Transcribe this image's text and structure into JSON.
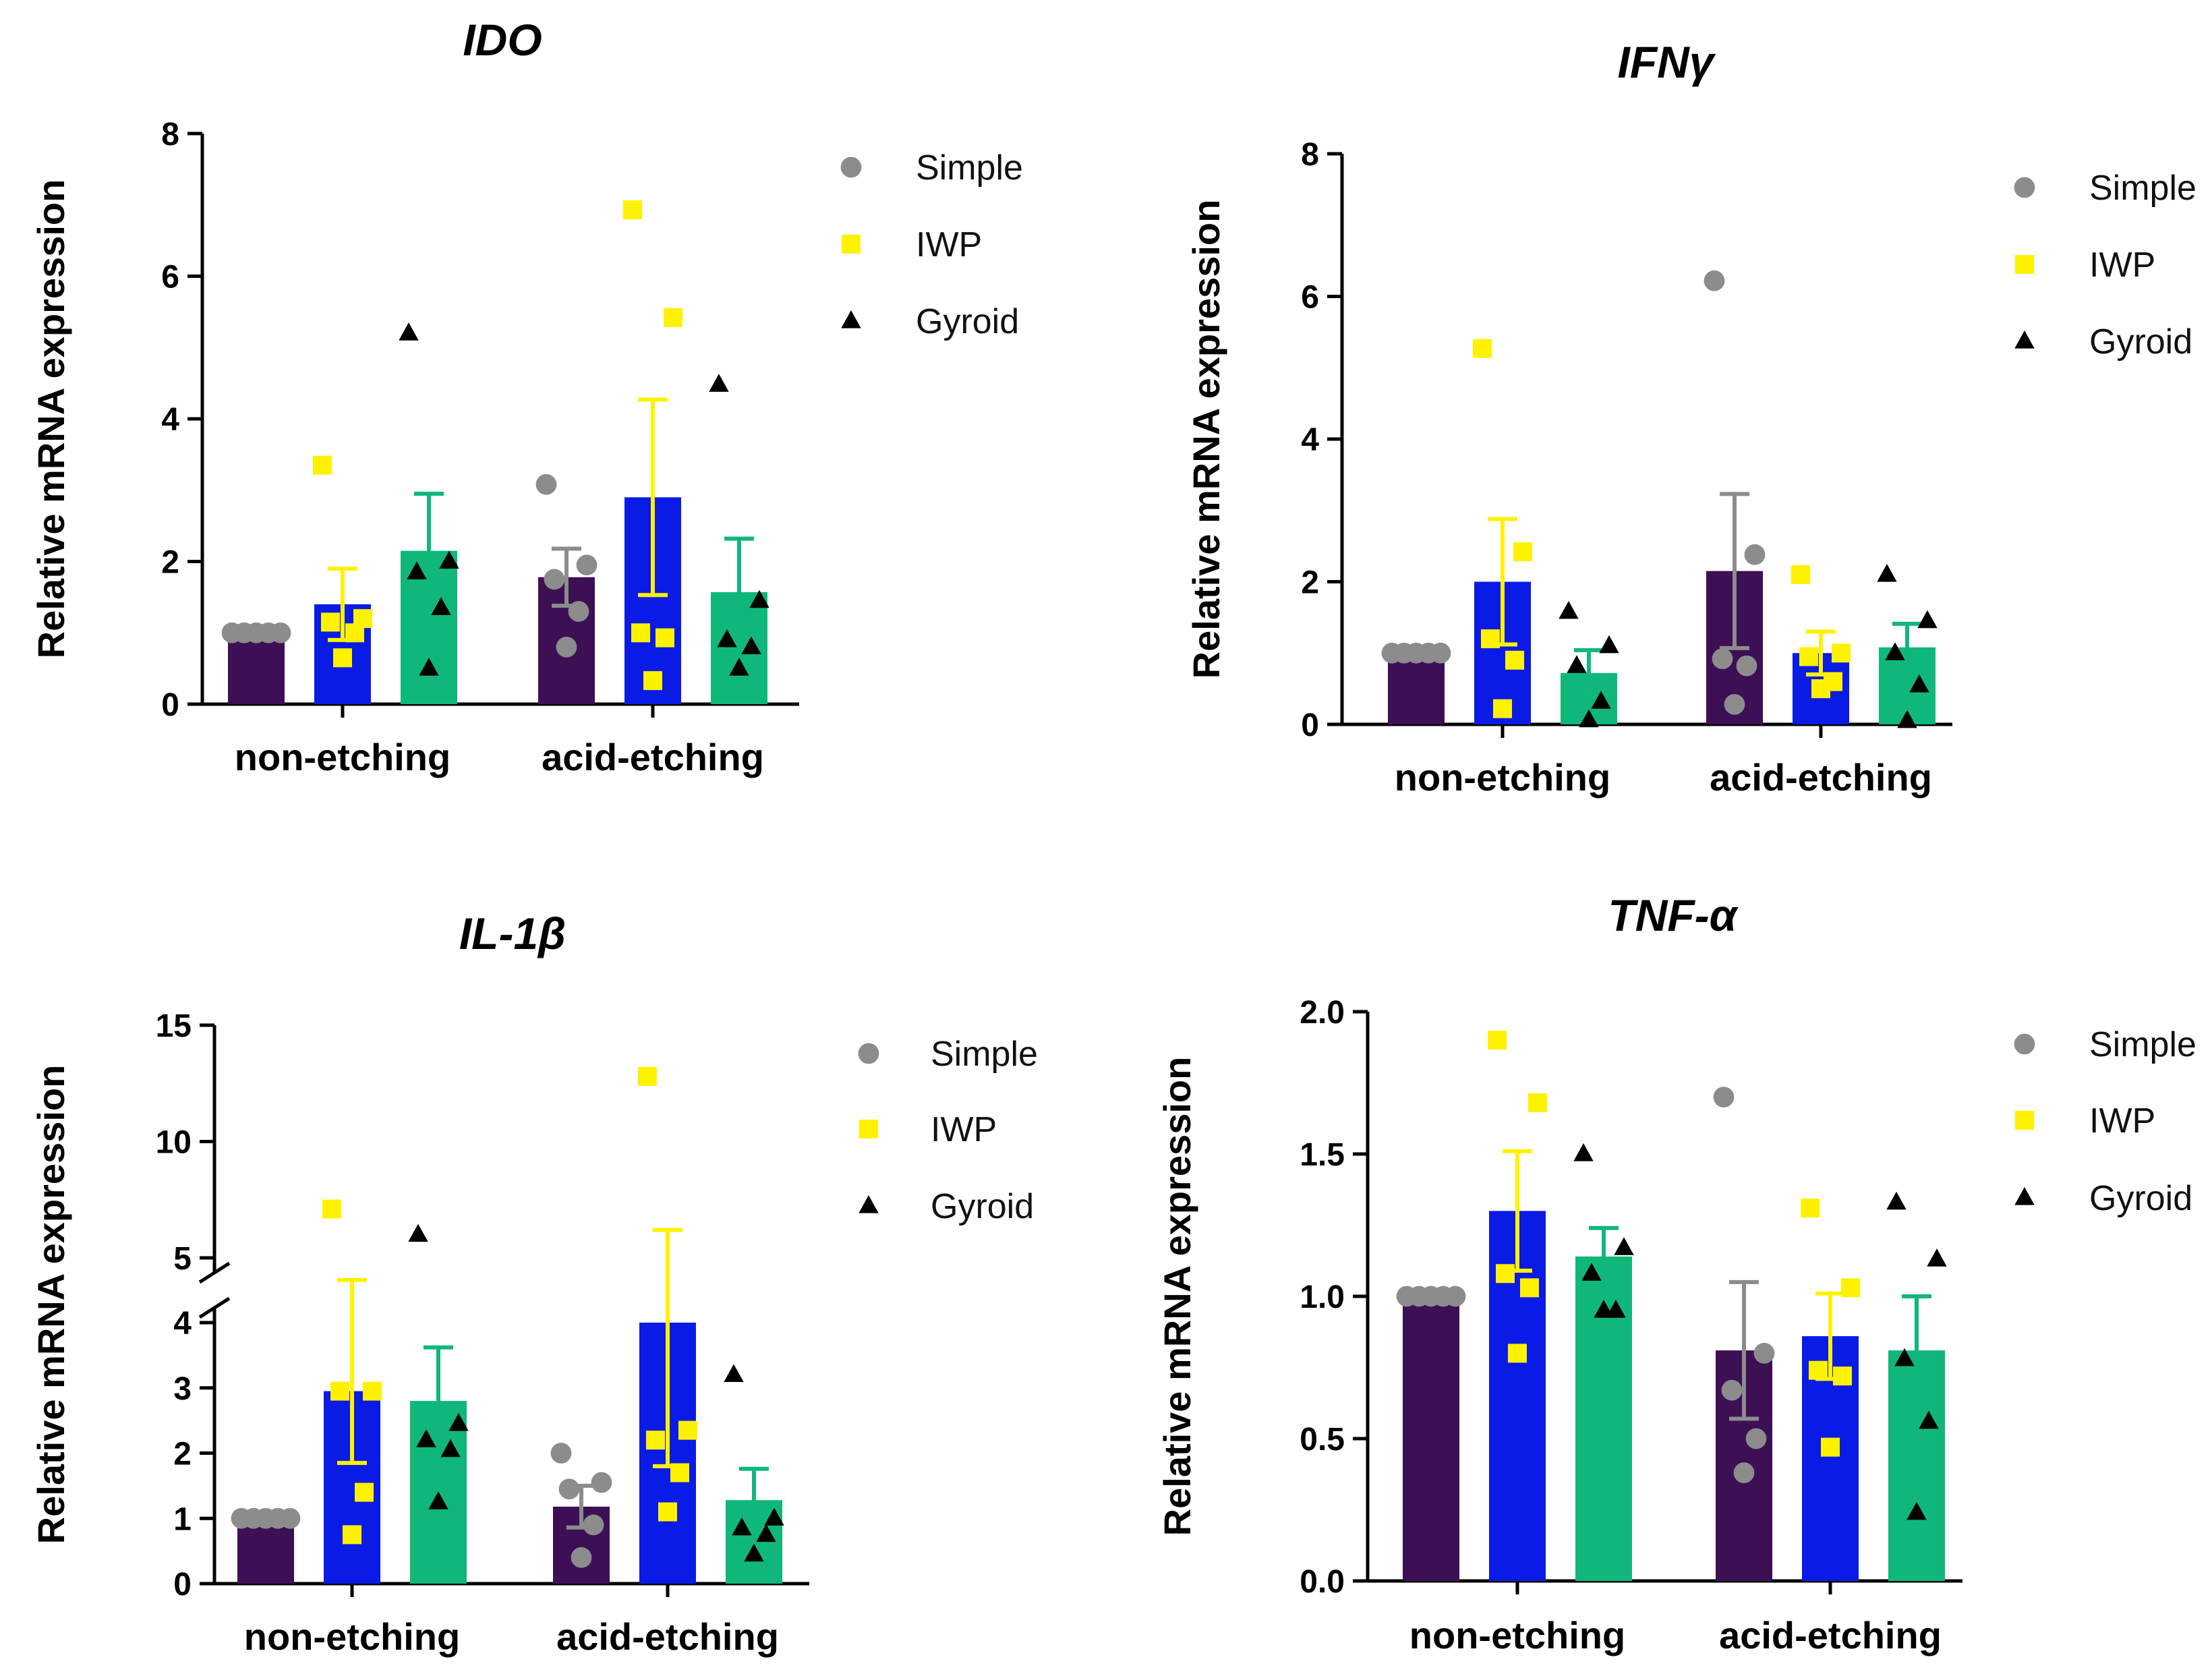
{
  "colors": {
    "Simple": "#3d0f55",
    "IWP": "#0b1be6",
    "Gyroid": "#0fb87a",
    "simple_marker": "#8c8c8c",
    "iwp_marker": "#fff200",
    "gyroid_marker": "#000000",
    "error_simple": "#8c8c8c",
    "error_iwp": "#fff200",
    "error_gyroid": "#0fb87a"
  },
  "chart_data": [
    {
      "id": "ido",
      "type": "bar",
      "title": "IDO",
      "ylabel": "Relative mRNA expression",
      "xlabel": "",
      "ylim": [
        0,
        8
      ],
      "yticks": [
        "0",
        "2",
        "4",
        "6",
        "8"
      ],
      "categories": [
        "non-etching",
        "acid-etching"
      ],
      "legend": [
        "Simple",
        "IWP",
        "Gyroid"
      ],
      "series": [
        {
          "name": "Simple",
          "values": [
            1.0,
            1.78
          ],
          "errors": [
            0.0,
            0.4
          ],
          "points": [
            [
              1,
              1,
              1,
              1,
              1
            ],
            [
              3.08,
              1.95,
              1.75,
              1.3,
              0.8
            ]
          ]
        },
        {
          "name": "IWP",
          "values": [
            1.4,
            2.9
          ],
          "errors": [
            0.5,
            1.37
          ],
          "points": [
            [
              3.35,
              1.2,
              1.15,
              1.0,
              0.65
            ],
            [
              6.93,
              5.42,
              1.0,
              0.93,
              0.33
            ]
          ]
        },
        {
          "name": "Gyroid",
          "values": [
            2.15,
            1.57
          ],
          "errors": [
            0.8,
            0.75
          ],
          "points": [
            [
              5.2,
              2.0,
              1.85,
              1.35,
              0.5
            ],
            [
              4.48,
              1.45,
              0.9,
              0.8,
              0.5
            ]
          ]
        }
      ]
    },
    {
      "id": "ifng",
      "type": "bar",
      "title": "IFNγ",
      "ylabel": "Relative mRNA expression",
      "xlabel": "",
      "ylim": [
        0,
        8
      ],
      "yticks": [
        "0",
        "2",
        "4",
        "6",
        "8"
      ],
      "categories": [
        "non-etching",
        "acid-etching"
      ],
      "legend": [
        "Simple",
        "IWP",
        "Gyroid"
      ],
      "series": [
        {
          "name": "Simple",
          "values": [
            1.0,
            2.15
          ],
          "errors": [
            0.0,
            1.08
          ],
          "points": [
            [
              1,
              1,
              1,
              1,
              1
            ],
            [
              6.22,
              2.38,
              0.92,
              0.82,
              0.28
            ]
          ]
        },
        {
          "name": "IWP",
          "values": [
            2.0,
            1.0
          ],
          "errors": [
            0.88,
            0.3
          ],
          "points": [
            [
              5.27,
              2.42,
              1.2,
              0.9,
              0.22
            ],
            [
              2.1,
              1.0,
              0.95,
              0.6,
              0.5
            ]
          ]
        },
        {
          "name": "Gyroid",
          "values": [
            0.72,
            1.08
          ],
          "errors": [
            0.32,
            0.33
          ],
          "points": [
            [
              1.58,
              1.1,
              0.82,
              0.32,
              0.06
            ],
            [
              2.1,
              1.45,
              1.0,
              0.55,
              0.05
            ]
          ]
        }
      ]
    },
    {
      "id": "il1b",
      "type": "bar",
      "title": "IL-1β",
      "ylabel": "Relative mRNA expression",
      "xlabel": "",
      "ylim": [
        0,
        15
      ],
      "axis_break": [
        4,
        5
      ],
      "yticks": [
        "0",
        "1",
        "2",
        "3",
        "4",
        "5",
        "10",
        "15"
      ],
      "categories": [
        "non-etching",
        "acid-etching"
      ],
      "legend": [
        "Simple",
        "IWP",
        "Gyroid"
      ],
      "series": [
        {
          "name": "Simple",
          "values": [
            1.0,
            1.18
          ],
          "errors": [
            0.0,
            0.32
          ],
          "points": [
            [
              1,
              1,
              1,
              1,
              1
            ],
            [
              2.0,
              1.55,
              1.45,
              0.9,
              0.4
            ]
          ]
        },
        {
          "name": "IWP",
          "values": [
            2.95,
            4.0
          ],
          "errors": [
            1.1,
            2.2
          ],
          "points": [
            [
              7.1,
              2.95,
              2.95,
              1.4,
              0.75
            ],
            [
              12.8,
              2.35,
              2.2,
              1.7,
              1.1
            ]
          ]
        },
        {
          "name": "Gyroid",
          "values": [
            2.8,
            1.28
          ],
          "errors": [
            0.82,
            0.48
          ],
          "points": [
            [
              6.0,
              2.45,
              2.2,
              2.05,
              1.25
            ],
            [
              3.2,
              1.0,
              0.85,
              0.75,
              0.45
            ]
          ]
        }
      ]
    },
    {
      "id": "tnfa",
      "type": "bar",
      "title": "TNF-α",
      "ylabel": "Relative mRNA expression",
      "xlabel": "",
      "ylim": [
        0,
        2.0
      ],
      "yticks": [
        "0.0",
        "0.5",
        "1.0",
        "1.5",
        "2.0"
      ],
      "categories": [
        "non-etching",
        "acid-etching"
      ],
      "legend": [
        "Simple",
        "IWP",
        "Gyroid"
      ],
      "series": [
        {
          "name": "Simple",
          "values": [
            1.0,
            0.81
          ],
          "errors": [
            0.0,
            0.24
          ],
          "points": [
            [
              1,
              1,
              1,
              1,
              1
            ],
            [
              1.7,
              0.8,
              0.67,
              0.5,
              0.38
            ]
          ]
        },
        {
          "name": "IWP",
          "values": [
            1.3,
            0.86
          ],
          "errors": [
            0.21,
            0.15
          ],
          "points": [
            [
              1.9,
              1.68,
              1.08,
              1.03,
              0.8
            ],
            [
              1.31,
              1.03,
              0.74,
              0.72,
              0.47
            ]
          ]
        },
        {
          "name": "Gyroid",
          "values": [
            1.14,
            0.81
          ],
          "errors": [
            0.1,
            0.19
          ],
          "points": [
            [
              1.5,
              1.17,
              1.08,
              0.95,
              0.95
            ],
            [
              1.33,
              1.13,
              0.78,
              0.56,
              0.24
            ]
          ]
        }
      ]
    }
  ]
}
